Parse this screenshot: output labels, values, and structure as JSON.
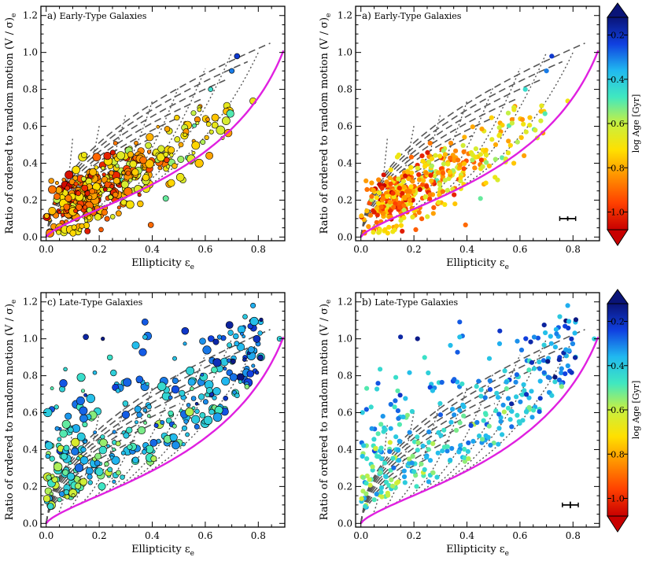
{
  "figure": {
    "panels": [
      {
        "label": "a)",
        "title": "Early-Type Galaxies",
        "style": "mixed",
        "colorbar": false,
        "errbar": false,
        "type": "early"
      },
      {
        "label": "a)",
        "title": "Early-Type Galaxies",
        "style": "age",
        "colorbar": true,
        "errbar": true,
        "type": "early"
      },
      {
        "label": "c)",
        "title": "Late-Type Galaxies",
        "style": "mixed",
        "colorbar": false,
        "errbar": false,
        "type": "late"
      },
      {
        "label": "b)",
        "title": "Late-Type Galaxies",
        "style": "age",
        "colorbar": true,
        "errbar": true,
        "type": "late"
      }
    ],
    "xlabel_main": "Ellipticity ε",
    "xlabel_sub": "e",
    "ylabel_main": "Ratio of ordered to random motion (V / σ)",
    "ylabel_sub": "e",
    "colorbar": {
      "label": "log Age [Gyr]",
      "ticks": [
        "0.2",
        "0.4",
        "0.6",
        "0.8",
        "1.0"
      ],
      "range": [
        0.12,
        1.08
      ],
      "colors": [
        "#0a1478",
        "#1040e0",
        "#20b8f0",
        "#40e8c0",
        "#c8f040",
        "#ffe000",
        "#ff9000",
        "#ff4000",
        "#c80000"
      ]
    }
  },
  "chart_data": [
    {
      "type": "scatter",
      "title": "Early-Type Galaxies",
      "xlabel": "Ellipticity εe",
      "ylabel": "Ratio of ordered to random motion (V / σ)e",
      "xlim": [
        -0.02,
        0.9
      ],
      "ylim": [
        -0.02,
        1.25
      ],
      "xticks": [
        "0.0",
        "0.2",
        "0.4",
        "0.6",
        "0.8"
      ],
      "yticks": [
        "0.0",
        "0.2",
        "0.4",
        "0.6",
        "0.8",
        "1.0",
        "1.2"
      ],
      "point_count": 420,
      "color_by": "log Age [Gyr]",
      "sample_points": [
        [
          0.02,
          0.12
        ],
        [
          0.05,
          0.2
        ],
        [
          0.1,
          0.18
        ],
        [
          0.15,
          0.25
        ],
        [
          0.2,
          0.3
        ],
        [
          0.25,
          0.28
        ],
        [
          0.3,
          0.35
        ],
        [
          0.35,
          0.4
        ],
        [
          0.4,
          0.45
        ],
        [
          0.45,
          0.5
        ],
        [
          0.5,
          0.55
        ],
        [
          0.55,
          0.5
        ],
        [
          0.6,
          0.6
        ],
        [
          0.7,
          0.9
        ],
        [
          0.72,
          0.98
        ]
      ]
    },
    {
      "type": "scatter",
      "title": "Early-Type Galaxies",
      "xlabel": "Ellipticity εe",
      "ylabel": "Ratio of ordered to random motion (V / σ)e",
      "xlim": [
        -0.02,
        0.9
      ],
      "ylim": [
        -0.02,
        1.25
      ],
      "point_count": 420,
      "color_by": "log Age [Gyr]",
      "typical_error": {
        "x": 0.78,
        "y": 0.1,
        "dx": 0.03,
        "dy": 0.012
      }
    },
    {
      "type": "scatter",
      "title": "Late-Type Galaxies",
      "xlabel": "Ellipticity εe",
      "ylabel": "Ratio of ordered to random motion (V / σ)e",
      "xlim": [
        -0.02,
        0.9
      ],
      "ylim": [
        -0.02,
        1.25
      ],
      "point_count": 330,
      "color_by": "log Age [Gyr]",
      "sample_points": [
        [
          0.02,
          0.3
        ],
        [
          0.05,
          0.45
        ],
        [
          0.1,
          0.85
        ],
        [
          0.15,
          0.6
        ],
        [
          0.2,
          0.7
        ],
        [
          0.3,
          1.12
        ],
        [
          0.35,
          0.55
        ],
        [
          0.4,
          0.65
        ],
        [
          0.45,
          0.7
        ],
        [
          0.5,
          0.75
        ],
        [
          0.6,
          0.8
        ],
        [
          0.7,
          0.65
        ],
        [
          0.75,
          1.18
        ],
        [
          0.8,
          0.4
        ],
        [
          0.88,
          1.0
        ]
      ]
    },
    {
      "type": "scatter",
      "title": "Late-Type Galaxies",
      "xlabel": "Ellipticity εe",
      "ylabel": "Ratio of ordered to random motion (V / σ)e",
      "xlim": [
        -0.02,
        0.9
      ],
      "ylim": [
        -0.02,
        1.25
      ],
      "point_count": 330,
      "color_by": "log Age [Gyr]",
      "typical_error": {
        "x": 0.79,
        "y": 0.1,
        "dx": 0.03,
        "dy": 0.018
      }
    }
  ]
}
